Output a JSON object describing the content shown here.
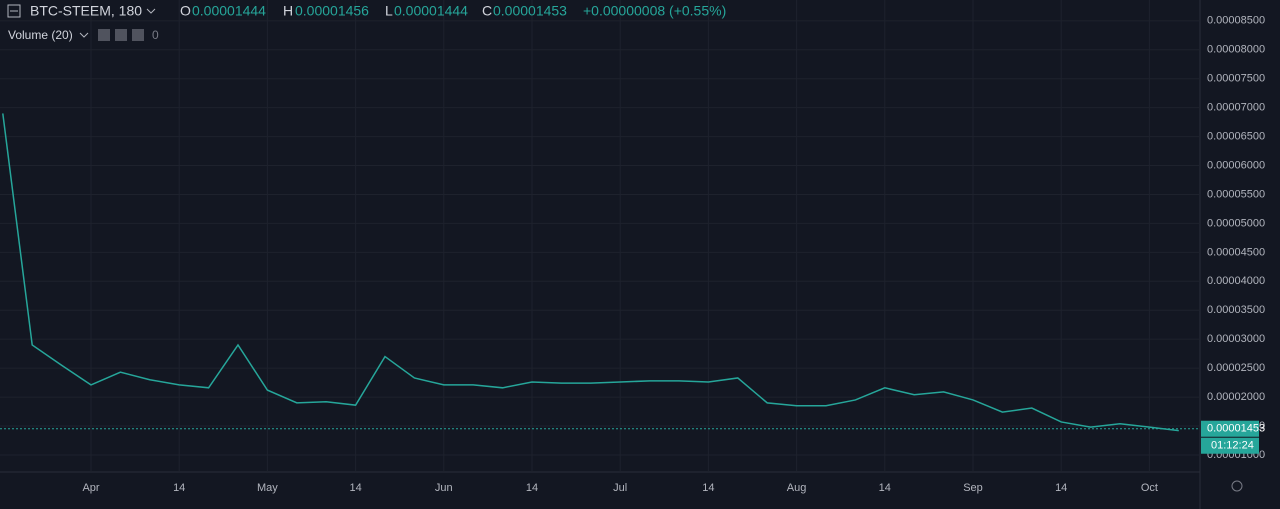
{
  "header": {
    "symbol": "BTC-STEEM, 180",
    "o_label": "O",
    "o": 1.444e-05,
    "h_label": "H",
    "h": 1.456e-05,
    "l_label": "L",
    "l": 1.444e-05,
    "c_label": "C",
    "c": 1.453e-05,
    "change": "+0.00000008 (+0.55%)",
    "volume_label": "Volume (20)",
    "volume_value": "0",
    "countdown": "01:12:24"
  },
  "chart_data": {
    "type": "line",
    "categories": [
      null,
      null,
      null,
      "Apr",
      null,
      null,
      "14",
      null,
      null,
      "May",
      null,
      null,
      "14",
      null,
      null,
      "Jun",
      null,
      null,
      "14",
      null,
      null,
      "Jul",
      null,
      null,
      "14",
      null,
      null,
      "Aug",
      null,
      null,
      "14",
      null,
      null,
      "Sep",
      null,
      null,
      "14",
      null,
      null,
      "Oct",
      null
    ],
    "series": [
      {
        "name": "BTC-STEEM",
        "color": "#26a69a",
        "values": [
          6.9e-05,
          2.9e-05,
          2.55e-05,
          2.21e-05,
          2.43e-05,
          2.3e-05,
          2.21e-05,
          2.16e-05,
          2.9e-05,
          2.12e-05,
          1.9e-05,
          1.92e-05,
          1.86e-05,
          2.7e-05,
          2.33e-05,
          2.21e-05,
          2.21e-05,
          2.16e-05,
          2.26e-05,
          2.24e-05,
          2.24e-05,
          2.26e-05,
          2.28e-05,
          2.28e-05,
          2.26e-05,
          2.33e-05,
          1.9e-05,
          1.85e-05,
          1.85e-05,
          1.95e-05,
          2.16e-05,
          2.04e-05,
          2.09e-05,
          1.95e-05,
          1.74e-05,
          1.81e-05,
          1.57e-05,
          1.48e-05,
          1.54e-05,
          1.48e-05,
          1.42e-05
        ]
      }
    ],
    "last_price": 1.453e-05,
    "ylim": [
      7.4e-06,
      8.86e-05
    ],
    "yticks": [
      {
        "value": 1e-05,
        "label": "0.00001000"
      },
      {
        "value": 1.5e-05,
        "label": "0.00001500"
      },
      {
        "value": 2e-05,
        "label": "0.00002000"
      },
      {
        "value": 2.5e-05,
        "label": "0.00002500"
      },
      {
        "value": 3e-05,
        "label": "0.00003000"
      },
      {
        "value": 3.5e-05,
        "label": "0.00003500"
      },
      {
        "value": 4e-05,
        "label": "0.00004000"
      },
      {
        "value": 4.5e-05,
        "label": "0.00004500"
      },
      {
        "value": 5e-05,
        "label": "0.00005000"
      },
      {
        "value": 5.5e-05,
        "label": "0.00005500"
      },
      {
        "value": 6e-05,
        "label": "0.00006000"
      },
      {
        "value": 6.5e-05,
        "label": "0.00006500"
      },
      {
        "value": 7e-05,
        "label": "0.00007000"
      },
      {
        "value": 7.5e-05,
        "label": "0.00007500"
      },
      {
        "value": 8e-05,
        "label": "0.00008000"
      },
      {
        "value": 8.5e-05,
        "label": "0.00008500"
      }
    ],
    "grid": true
  }
}
